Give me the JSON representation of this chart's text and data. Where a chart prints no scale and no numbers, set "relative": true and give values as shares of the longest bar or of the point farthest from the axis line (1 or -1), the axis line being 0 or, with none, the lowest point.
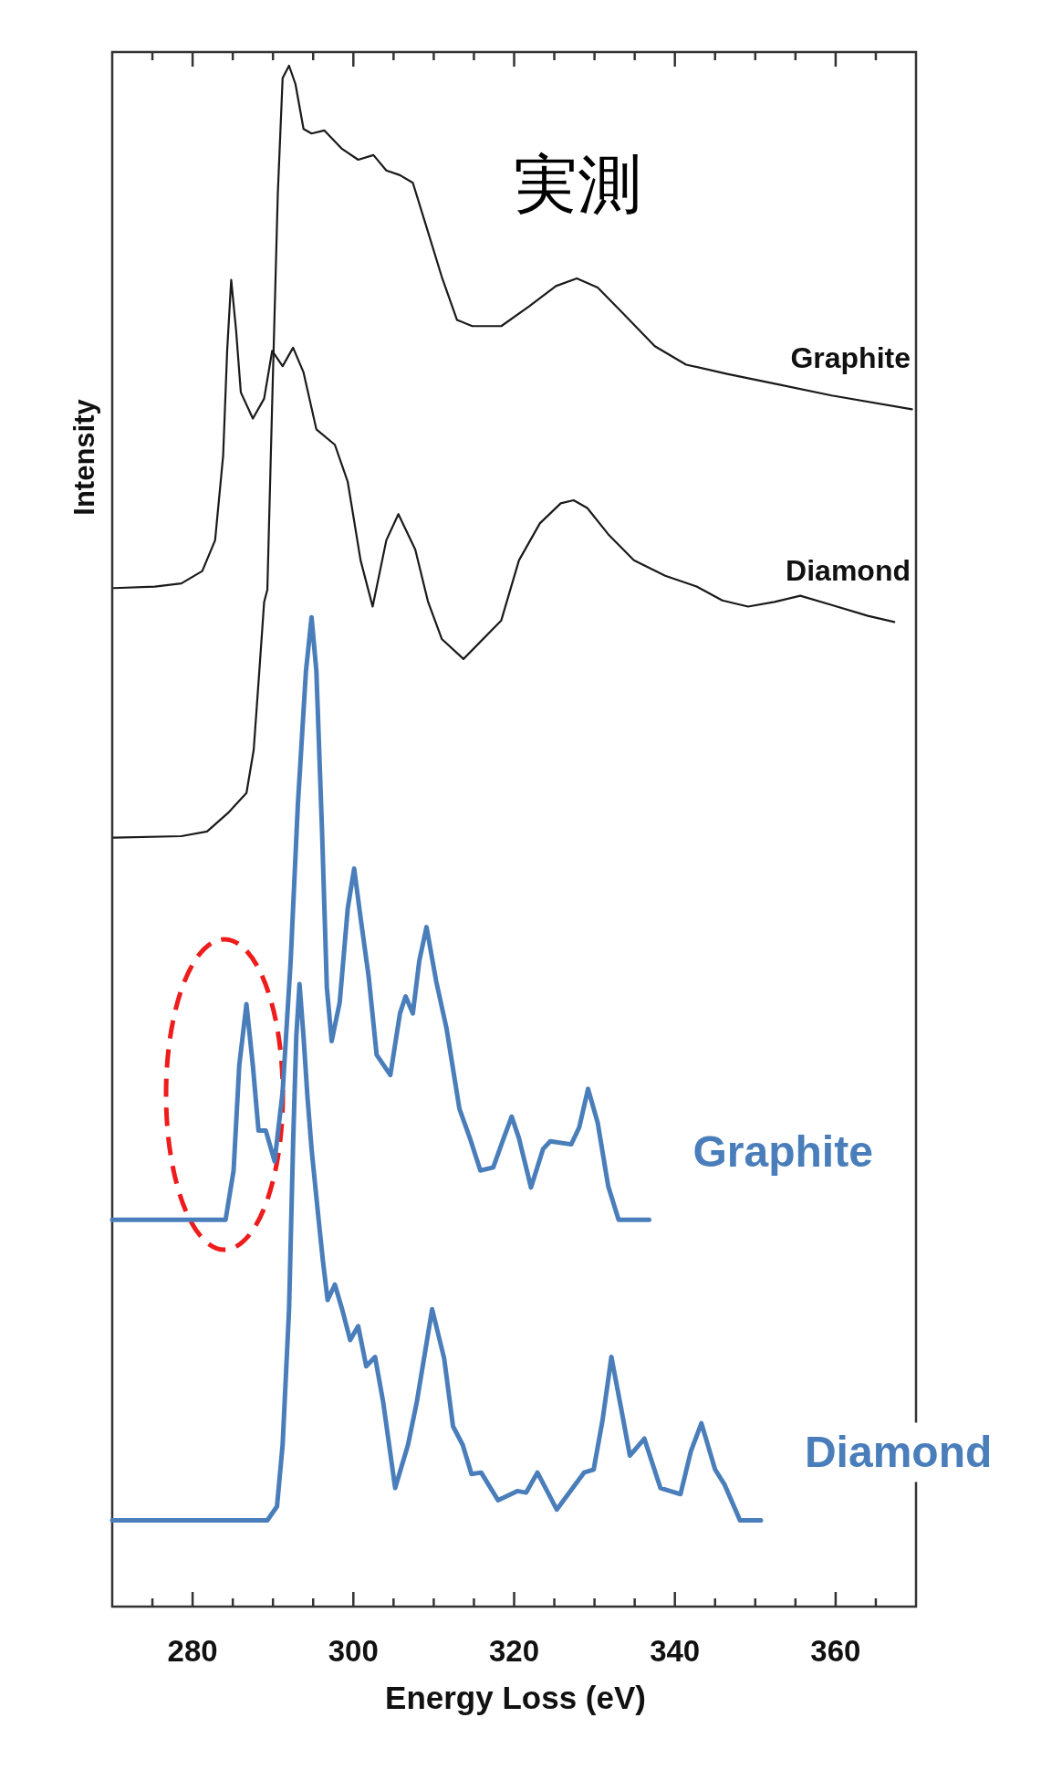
{
  "chart_data": {
    "type": "line",
    "relative": true,
    "xlabel": "Energy Loss (eV)",
    "ylabel": "Intensity",
    "annotations": [
      "実測"
    ],
    "xlim": [
      270,
      370
    ],
    "xticks": [
      {
        "value": 275,
        "label": null
      },
      280,
      {
        "value": 285,
        "label": null
      },
      {
        "value": 290,
        "label": null
      },
      {
        "value": 295,
        "label": null
      },
      300,
      {
        "value": 305,
        "label": null
      },
      {
        "value": 310,
        "label": null
      },
      {
        "value": 315,
        "label": null
      },
      320,
      {
        "value": 325,
        "label": null
      },
      {
        "value": 330,
        "label": null
      },
      {
        "value": 335,
        "label": null
      },
      340,
      {
        "value": 345,
        "label": null
      },
      {
        "value": 350,
        "label": null
      },
      {
        "value": 355,
        "label": null
      },
      360,
      {
        "value": 365,
        "label": null
      }
    ],
    "series": [
      {
        "name": "Graphite",
        "color": "#1a1a1a",
        "x": [
          270.2,
          278.6,
          281.8,
          284.4,
          286.7,
          287.6,
          288.3,
          288.9,
          289.3,
          289.9,
          290.6,
          291.2,
          292.0,
          292.8,
          293.8,
          294.8,
          296.4,
          298.6,
          300.6,
          302.5,
          304.1,
          305.8,
          307.4,
          309.0,
          311.0,
          312.9,
          314.8,
          318.4,
          321.9,
          325.2,
          327.8,
          330.4,
          333.6,
          337.5,
          341.4,
          346.5,
          353.0,
          359.5,
          369.5
        ],
        "values": [
          0.499,
          0.5,
          0.503,
          0.515,
          0.528,
          0.556,
          0.607,
          0.652,
          0.66,
          0.781,
          0.917,
          0.992,
          1.0,
          0.988,
          0.959,
          0.956,
          0.958,
          0.946,
          0.939,
          0.942,
          0.932,
          0.929,
          0.924,
          0.897,
          0.863,
          0.835,
          0.831,
          0.831,
          0.844,
          0.857,
          0.862,
          0.856,
          0.839,
          0.818,
          0.806,
          0.8,
          0.793,
          0.786,
          0.777
        ]
      },
      {
        "name": "Diamond",
        "color": "#1a1a1a",
        "x": [
          270.2,
          275.3,
          278.6,
          281.2,
          282.8,
          283.8,
          284.3,
          284.8,
          285.4,
          286.0,
          287.5,
          288.9,
          289.9,
          291.2,
          292.5,
          293.8,
          295.4,
          297.7,
          299.3,
          300.9,
          302.4,
          304.1,
          305.6,
          307.7,
          309.3,
          311.0,
          313.7,
          318.4,
          320.6,
          323.2,
          325.8,
          327.4,
          329.1,
          331.7,
          334.9,
          338.8,
          342.7,
          345.9,
          349.1,
          352.4,
          355.6,
          359.5,
          364.0,
          367.3
        ],
        "values": [
          0.661,
          0.662,
          0.664,
          0.672,
          0.692,
          0.747,
          0.815,
          0.861,
          0.829,
          0.788,
          0.771,
          0.784,
          0.815,
          0.805,
          0.817,
          0.801,
          0.764,
          0.754,
          0.73,
          0.679,
          0.649,
          0.692,
          0.709,
          0.686,
          0.652,
          0.628,
          0.615,
          0.64,
          0.679,
          0.703,
          0.716,
          0.718,
          0.713,
          0.696,
          0.679,
          0.669,
          0.662,
          0.653,
          0.649,
          0.652,
          0.656,
          0.65,
          0.643,
          0.639
        ]
      },
      {
        "name": "Graphite",
        "color": "#4a7ebb",
        "x": [
          270,
          284.1,
          285.1,
          285.8,
          286.7,
          287.5,
          288.2,
          289.1,
          290.2,
          291.2,
          292.2,
          293.1,
          294.1,
          294.8,
          295.4,
          296.1,
          296.7,
          297.3,
          298.3,
          299.3,
          300.1,
          300.9,
          301.9,
          302.9,
          304.6,
          305.8,
          306.5,
          307.4,
          308.2,
          309.1,
          310.3,
          311.6,
          313.2,
          314.5,
          315.8,
          317.4,
          318.7,
          319.7,
          320.6,
          322.1,
          323.6,
          324.5,
          327.1,
          328.1,
          329.2,
          330.4,
          331.7,
          333.0,
          336.8
        ],
        "values": [
          0.251,
          0.251,
          0.283,
          0.351,
          0.391,
          0.351,
          0.309,
          0.309,
          0.289,
          0.334,
          0.419,
          0.521,
          0.607,
          0.642,
          0.607,
          0.504,
          0.402,
          0.367,
          0.392,
          0.453,
          0.479,
          0.447,
          0.409,
          0.358,
          0.345,
          0.385,
          0.396,
          0.385,
          0.419,
          0.441,
          0.406,
          0.375,
          0.323,
          0.304,
          0.283,
          0.285,
          0.304,
          0.318,
          0.304,
          0.272,
          0.297,
          0.302,
          0.3,
          0.311,
          0.336,
          0.314,
          0.273,
          0.251,
          0.251
        ]
      },
      {
        "name": "Diamond",
        "color": "#4a7ebb",
        "x": [
          270,
          289.3,
          290.5,
          291.2,
          292.0,
          292.5,
          292.9,
          293.3,
          293.8,
          294.3,
          294.8,
          295.7,
          296.2,
          296.8,
          297.7,
          298.6,
          299.6,
          300.6,
          301.6,
          302.7,
          303.7,
          305.2,
          306.8,
          307.9,
          309.8,
          311.3,
          312.4,
          313.6,
          314.7,
          315.9,
          318.0,
          320.4,
          321.5,
          322.9,
          325.3,
          328.7,
          329.9,
          331.0,
          332.1,
          333.3,
          334.4,
          336.2,
          338.2,
          340.7,
          342.0,
          343.3,
          345.0,
          346.2,
          348.1,
          350.7
        ],
        "values": [
          0.056,
          0.056,
          0.065,
          0.105,
          0.193,
          0.3,
          0.37,
          0.404,
          0.37,
          0.33,
          0.297,
          0.25,
          0.225,
          0.199,
          0.209,
          0.193,
          0.173,
          0.182,
          0.156,
          0.162,
          0.133,
          0.077,
          0.105,
          0.133,
          0.193,
          0.161,
          0.117,
          0.105,
          0.086,
          0.087,
          0.069,
          0.075,
          0.074,
          0.087,
          0.063,
          0.087,
          0.089,
          0.121,
          0.162,
          0.129,
          0.098,
          0.109,
          0.077,
          0.073,
          0.101,
          0.119,
          0.089,
          0.079,
          0.056,
          0.056
        ]
      }
    ]
  }
}
